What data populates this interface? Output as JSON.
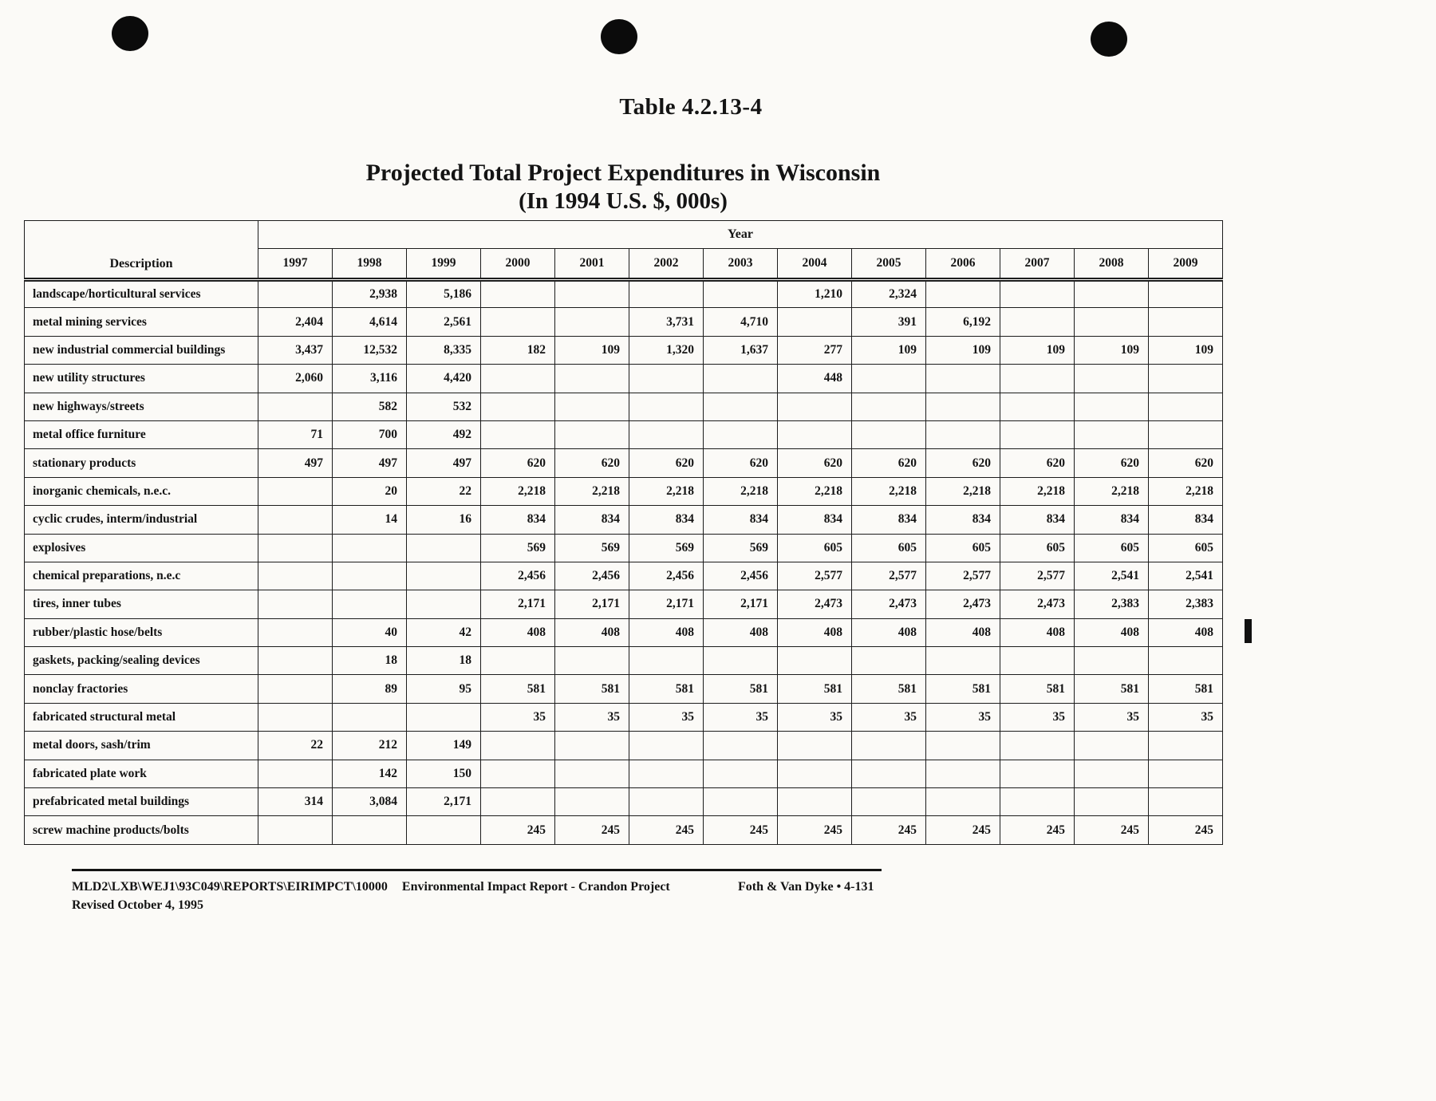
{
  "page": {
    "table_number": "Table 4.2.13-4",
    "title_line1": "Projected Total Project Expenditures in Wisconsin",
    "title_line2": "(In 1994 U.S. $, 000s)"
  },
  "table": {
    "year_header": "Year",
    "description_header": "Description",
    "columns": [
      "1997",
      "1998",
      "1999",
      "2000",
      "2001",
      "2002",
      "2003",
      "2004",
      "2005",
      "2006",
      "2007",
      "2008",
      "2009"
    ],
    "rows": [
      {
        "description": "landscape/horticultural services",
        "values": [
          "",
          "2,938",
          "5,186",
          "",
          "",
          "",
          "",
          "1,210",
          "2,324",
          "",
          "",
          "",
          ""
        ]
      },
      {
        "description": "metal mining services",
        "values": [
          "2,404",
          "4,614",
          "2,561",
          "",
          "",
          "3,731",
          "4,710",
          "",
          "391",
          "6,192",
          "",
          "",
          ""
        ]
      },
      {
        "description": "new industrial commercial buildings",
        "values": [
          "3,437",
          "12,532",
          "8,335",
          "182",
          "109",
          "1,320",
          "1,637",
          "277",
          "109",
          "109",
          "109",
          "109",
          "109"
        ]
      },
      {
        "description": "new utility structures",
        "values": [
          "2,060",
          "3,116",
          "4,420",
          "",
          "",
          "",
          "",
          "448",
          "",
          "",
          "",
          "",
          ""
        ]
      },
      {
        "description": "new highways/streets",
        "values": [
          "",
          "582",
          "532",
          "",
          "",
          "",
          "",
          "",
          "",
          "",
          "",
          "",
          ""
        ]
      },
      {
        "description": "metal office furniture",
        "values": [
          "71",
          "700",
          "492",
          "",
          "",
          "",
          "",
          "",
          "",
          "",
          "",
          "",
          ""
        ]
      },
      {
        "description": "stationary products",
        "values": [
          "497",
          "497",
          "497",
          "620",
          "620",
          "620",
          "620",
          "620",
          "620",
          "620",
          "620",
          "620",
          "620"
        ]
      },
      {
        "description": "inorganic chemicals, n.e.c.",
        "values": [
          "",
          "20",
          "22",
          "2,218",
          "2,218",
          "2,218",
          "2,218",
          "2,218",
          "2,218",
          "2,218",
          "2,218",
          "2,218",
          "2,218"
        ]
      },
      {
        "description": "cyclic crudes, interm/industrial",
        "values": [
          "",
          "14",
          "16",
          "834",
          "834",
          "834",
          "834",
          "834",
          "834",
          "834",
          "834",
          "834",
          "834"
        ]
      },
      {
        "description": "explosives",
        "values": [
          "",
          "",
          "",
          "569",
          "569",
          "569",
          "569",
          "605",
          "605",
          "605",
          "605",
          "605",
          "605"
        ]
      },
      {
        "description": "chemical preparations, n.e.c",
        "values": [
          "",
          "",
          "",
          "2,456",
          "2,456",
          "2,456",
          "2,456",
          "2,577",
          "2,577",
          "2,577",
          "2,577",
          "2,541",
          "2,541"
        ]
      },
      {
        "description": "tires, inner tubes",
        "values": [
          "",
          "",
          "",
          "2,171",
          "2,171",
          "2,171",
          "2,171",
          "2,473",
          "2,473",
          "2,473",
          "2,473",
          "2,383",
          "2,383"
        ]
      },
      {
        "description": "rubber/plastic hose/belts",
        "values": [
          "",
          "40",
          "42",
          "408",
          "408",
          "408",
          "408",
          "408",
          "408",
          "408",
          "408",
          "408",
          "408"
        ]
      },
      {
        "description": "gaskets, packing/sealing devices",
        "values": [
          "",
          "18",
          "18",
          "",
          "",
          "",
          "",
          "",
          "",
          "",
          "",
          "",
          ""
        ]
      },
      {
        "description": "nonclay fractories",
        "values": [
          "",
          "89",
          "95",
          "581",
          "581",
          "581",
          "581",
          "581",
          "581",
          "581",
          "581",
          "581",
          "581"
        ]
      },
      {
        "description": "fabricated structural metal",
        "values": [
          "",
          "",
          "",
          "35",
          "35",
          "35",
          "35",
          "35",
          "35",
          "35",
          "35",
          "35",
          "35"
        ]
      },
      {
        "description": "metal doors, sash/trim",
        "values": [
          "22",
          "212",
          "149",
          "",
          "",
          "",
          "",
          "",
          "",
          "",
          "",
          "",
          ""
        ]
      },
      {
        "description": "fabricated plate work",
        "values": [
          "",
          "142",
          "150",
          "",
          "",
          "",
          "",
          "",
          "",
          "",
          "",
          "",
          ""
        ]
      },
      {
        "description": "prefabricated metal buildings",
        "values": [
          "314",
          "3,084",
          "2,171",
          "",
          "",
          "",
          "",
          "",
          "",
          "",
          "",
          "",
          ""
        ]
      },
      {
        "description": "screw machine products/bolts",
        "values": [
          "",
          "",
          "",
          "245",
          "245",
          "245",
          "245",
          "245",
          "245",
          "245",
          "245",
          "245",
          "245"
        ]
      }
    ]
  },
  "footer": {
    "doc_ref": "MLD2\\LXB\\WEJ1\\93C049\\REPORTS\\EIRIMPCT\\10000",
    "doc_title": "Environmental Impact Report - Crandon Project",
    "revised": "Revised October 4, 1995",
    "right_text": "Foth & Van Dyke • 4-131"
  }
}
